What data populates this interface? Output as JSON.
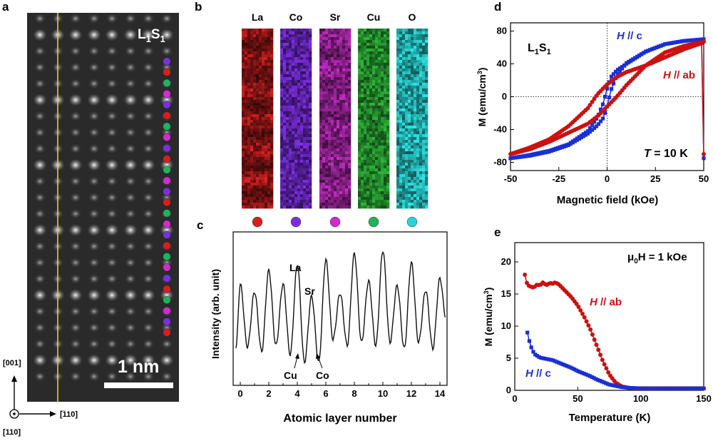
{
  "colors": {
    "la": "#d81f1f",
    "co": "#7b2fe0",
    "sr": "#d12bd1",
    "cu": "#1fb35a",
    "o": "#26d6d6",
    "series_c": "#1a2fd6",
    "series_ab": "#cc1111"
  },
  "panel_a": {
    "label": "a",
    "sample": "L",
    "sample_sub1": "1",
    "sample_s": "S",
    "sample_sub2": "1",
    "scalebar": "1 nm",
    "dir_up": "[001]",
    "dir_right": "[̅110]",
    "dir_out": "[110]",
    "dot_sequence": [
      "co",
      "la",
      "cu",
      "sr",
      "co",
      "la",
      "cu",
      "sr",
      "co",
      "la",
      "cu",
      "sr",
      "co",
      "la",
      "cu",
      "sr",
      "co",
      "la",
      "cu",
      "sr",
      "co",
      "la",
      "cu",
      "sr",
      "co",
      "la"
    ]
  },
  "panel_b": {
    "label": "b",
    "elements": [
      "La",
      "Co",
      "Sr",
      "Cu",
      "O"
    ],
    "legend_keys": [
      "la",
      "co",
      "sr",
      "cu",
      "o"
    ]
  },
  "panel_c": {
    "label": "c",
    "ylabel": "Intensity (arb. unit)",
    "xlabel": "Atomic layer number",
    "annotations": {
      "la": "La",
      "sr": "Sr",
      "cu": "Cu",
      "co": "Co"
    }
  },
  "panel_d": {
    "label": "d",
    "sample": "L",
    "sample_sub1": "1",
    "sample_s": "S",
    "sample_sub2": "1",
    "legend_c_field": "H",
    "legend_c_rest": " // c",
    "legend_ab_field": "H",
    "legend_ab_rest": " // ab",
    "temp_var": "T",
    "temp_rest": " = 10 K",
    "ylabel_base": "M (emu/cm",
    "ylabel_sup": "3",
    "ylabel_end": ")",
    "xlabel": "Magnetic field (kOe)"
  },
  "panel_e": {
    "label": "e",
    "field_mu": "μ",
    "field_sub": "0",
    "field_rest": "H = 1 kOe",
    "legend_ab_field": "H",
    "legend_ab_rest": " // ab",
    "legend_c_field": "H",
    "legend_c_rest": " // c",
    "ylabel_base": "M (emu/cm",
    "ylabel_sup": "3",
    "ylabel_end": ")",
    "xlabel": "Temperature (K)"
  },
  "chart_data": [
    {
      "type": "line",
      "panel": "c",
      "title": "",
      "xlabel": "Atomic layer number",
      "ylabel": "Intensity (arb. unit)",
      "xlim": [
        -0.5,
        14.5
      ],
      "ylim": [
        0,
        1
      ],
      "x_ticks": [
        "0",
        "2",
        "4",
        "6",
        "8",
        "10",
        "12",
        "14"
      ],
      "x": [
        -0.3,
        0,
        0.5,
        1,
        1.5,
        2,
        2.5,
        3,
        3.5,
        4,
        4.5,
        5,
        5.5,
        6,
        6.5,
        7,
        7.5,
        8,
        8.5,
        9,
        9.5,
        10,
        10.5,
        11,
        11.5,
        12,
        12.5,
        13,
        13.5,
        14,
        14.4
      ],
      "y": [
        0.25,
        0.66,
        0.25,
        0.61,
        0.22,
        0.75,
        0.26,
        0.66,
        0.2,
        0.79,
        0.15,
        0.58,
        0.15,
        0.82,
        0.3,
        0.6,
        0.26,
        0.86,
        0.28,
        0.68,
        0.26,
        0.88,
        0.28,
        0.65,
        0.24,
        0.8,
        0.28,
        0.62,
        0.24,
        0.7,
        0.45
      ]
    },
    {
      "type": "scatter",
      "panel": "d",
      "title": "",
      "xlabel": "Magnetic field (kOe)",
      "ylabel": "M (emu/cm3)",
      "xlim": [
        -50,
        50
      ],
      "ylim": [
        -90,
        90
      ],
      "x_ticks": [
        -50,
        -25,
        0,
        25,
        50
      ],
      "y_ticks": [
        -80,
        -40,
        0,
        40,
        80
      ],
      "series": [
        {
          "name": "H // c",
          "branch": "descending",
          "x": [
            50,
            40,
            30,
            20,
            10,
            5,
            2,
            0,
            -2,
            -5,
            -10,
            -20,
            -30,
            -40,
            -50
          ],
          "y": [
            70,
            68,
            64,
            55,
            40,
            32,
            24,
            10,
            -8,
            -25,
            -42,
            -58,
            -66,
            -71,
            -75
          ]
        },
        {
          "name": "H // c",
          "branch": "ascending",
          "x": [
            -50,
            -40,
            -30,
            -20,
            -10,
            -5,
            -2,
            0,
            2,
            5,
            10,
            20,
            30,
            40,
            50
          ],
          "y": [
            -75,
            -72,
            -67,
            -59,
            -45,
            -35,
            -26,
            -12,
            8,
            26,
            41,
            55,
            64,
            68,
            70
          ]
        },
        {
          "name": "H // ab",
          "branch": "descending",
          "x": [
            50,
            40,
            30,
            20,
            10,
            5,
            0,
            -5,
            -10,
            -20,
            -30,
            -40,
            -50
          ],
          "y": [
            66,
            58,
            48,
            38,
            30,
            24,
            15,
            3,
            -14,
            -36,
            -52,
            -62,
            -70
          ]
        },
        {
          "name": "H // ab",
          "branch": "ascending",
          "x": [
            -50,
            -40,
            -30,
            -20,
            -10,
            -5,
            0,
            5,
            10,
            20,
            30,
            40,
            50
          ],
          "y": [
            -70,
            -64,
            -55,
            -44,
            -33,
            -24,
            -12,
            0,
            14,
            38,
            54,
            62,
            67
          ]
        }
      ]
    },
    {
      "type": "scatter",
      "panel": "e",
      "title": "",
      "xlabel": "Temperature (K)",
      "ylabel": "M (emu/cm3)",
      "xlim": [
        0,
        150
      ],
      "ylim": [
        0,
        23
      ],
      "x_ticks": [
        0,
        50,
        100,
        150
      ],
      "y_ticks": [
        0,
        5,
        10,
        15,
        20
      ],
      "series": [
        {
          "name": "H // ab",
          "x": [
            8,
            10,
            12,
            15,
            18,
            20,
            22,
            25,
            28,
            30,
            32,
            35,
            38,
            40,
            45,
            50,
            55,
            60,
            65,
            70,
            75,
            80,
            85,
            90,
            95,
            100,
            110,
            120,
            130,
            140,
            150
          ],
          "y": [
            18,
            16.4,
            16.2,
            16.0,
            16.5,
            16.3,
            16.8,
            16.4,
            16.7,
            16.6,
            16.8,
            16.5,
            15.9,
            15.5,
            14.5,
            13.2,
            11.5,
            9.5,
            7.0,
            4.5,
            2.5,
            1.2,
            0.6,
            0.4,
            0.3,
            0.3,
            0.3,
            0.3,
            0.3,
            0.3,
            0.3
          ]
        },
        {
          "name": "H // c",
          "x": [
            10,
            12,
            14,
            16,
            20,
            25,
            30,
            35,
            40,
            45,
            50,
            55,
            60,
            65,
            70,
            75,
            80,
            85,
            90,
            100,
            110,
            120,
            130,
            140,
            150
          ],
          "y": [
            9.0,
            7.3,
            6.2,
            5.6,
            5.1,
            4.9,
            4.7,
            4.3,
            3.9,
            3.5,
            3.0,
            2.6,
            2.2,
            1.7,
            1.3,
            0.9,
            0.7,
            0.5,
            0.4,
            0.3,
            0.3,
            0.3,
            0.3,
            0.3,
            0.3
          ]
        }
      ]
    }
  ]
}
